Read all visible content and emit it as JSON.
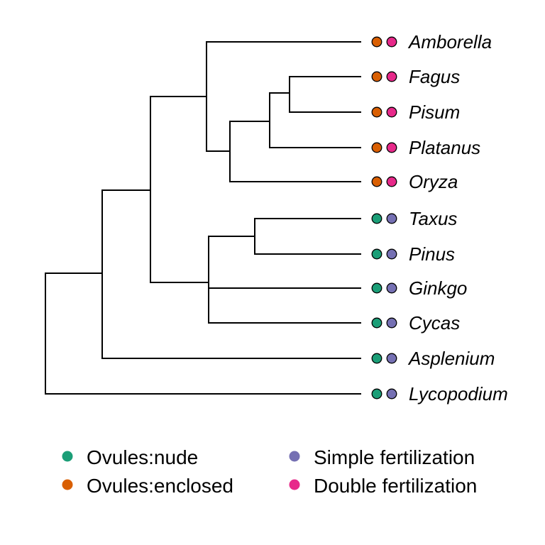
{
  "tree": {
    "taxa": [
      {
        "name": "Amborella",
        "ovules": "enclosed",
        "fertilization": "double"
      },
      {
        "name": "Fagus",
        "ovules": "enclosed",
        "fertilization": "double"
      },
      {
        "name": "Pisum",
        "ovules": "enclosed",
        "fertilization": "double"
      },
      {
        "name": "Platanus",
        "ovules": "enclosed",
        "fertilization": "double"
      },
      {
        "name": "Oryza",
        "ovules": "enclosed",
        "fertilization": "double"
      },
      {
        "name": "Taxus",
        "ovules": "nude",
        "fertilization": "simple"
      },
      {
        "name": "Pinus",
        "ovules": "nude",
        "fertilization": "simple"
      },
      {
        "name": "Ginkgo",
        "ovules": "nude",
        "fertilization": "simple"
      },
      {
        "name": "Cycas",
        "ovules": "nude",
        "fertilization": "simple"
      },
      {
        "name": "Asplenium",
        "ovules": "nude",
        "fertilization": "simple"
      },
      {
        "name": "Lycopodium",
        "ovules": "nude",
        "fertilization": "simple"
      }
    ],
    "newick": "(Lycopodium,(Asplenium,((Amborella,(((Fagus,Pisum),Platanus),Oryza)),((Taxus,Pinus),Ginkgo,Cycas))));"
  },
  "colors": {
    "nude": "#1b9e77",
    "enclosed": "#d95f02",
    "simple": "#7570b3",
    "double": "#e7298a"
  },
  "legend": {
    "items": [
      {
        "label": "Ovules:nude",
        "color_key": "nude"
      },
      {
        "label": "Ovules:enclosed",
        "color_key": "enclosed"
      },
      {
        "label": "Simple fertilization",
        "color_key": "simple"
      },
      {
        "label": "Double fertilization",
        "color_key": "double"
      }
    ]
  }
}
